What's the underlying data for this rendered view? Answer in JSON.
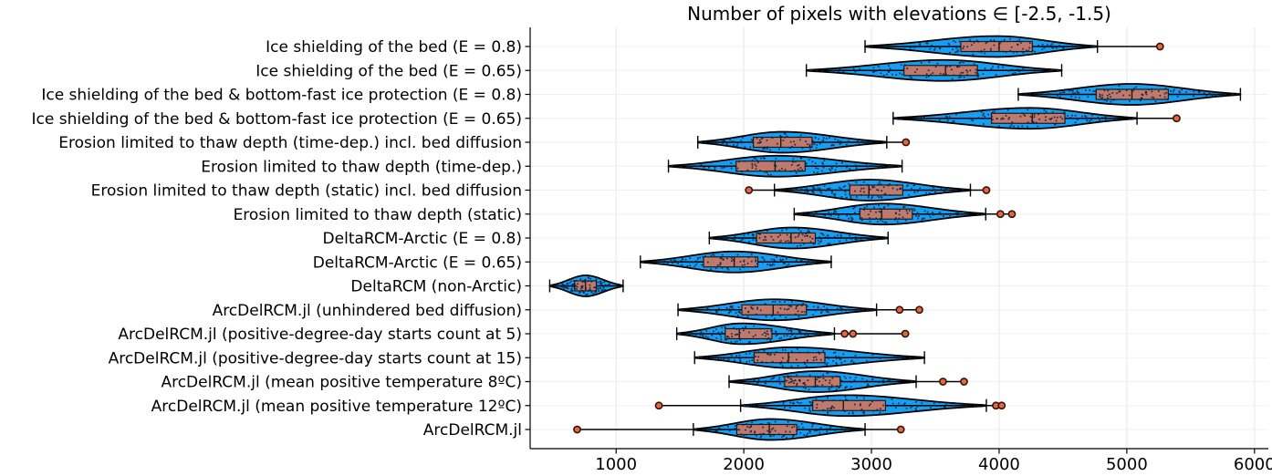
{
  "chart_data": {
    "type": "violin",
    "orientation": "horizontal",
    "title": "Number of pixels with elevations ∈ [-2.5, -1.5)",
    "xlabel": "",
    "ylabel": "",
    "x_ticks": [
      1000,
      2000,
      3000,
      4000,
      5000,
      6000
    ],
    "xlim": [
      310,
      6100
    ],
    "grid": true,
    "legend": "none",
    "colors": {
      "violin_fill": "#169ff2",
      "violin_stroke": "#000000",
      "box_fill": "#c0796a",
      "box_stroke": "#1a1a1a",
      "median_stroke": "#1a1a1a",
      "whisker_stroke": "#000000",
      "outlier_fill": "#e2683f",
      "outlier_stroke": "#331409",
      "scatter_dot": "#0d2240",
      "gridline": "#e7e7e7",
      "axis": "#000000",
      "text": "#000000"
    },
    "series": [
      {
        "label": "Ice shielding of the bed (E = 0.8)",
        "whisker_lo": 2950,
        "q1": 3700,
        "median": 4000,
        "q3": 4260,
        "whisker_hi": 4770,
        "outliers": [
          5260
        ]
      },
      {
        "label": "Ice shielding of the bed (E = 0.65)",
        "whisker_lo": 2490,
        "q1": 3255,
        "median": 3580,
        "q3": 3830,
        "whisker_hi": 4490,
        "outliers": []
      },
      {
        "label": "Ice shielding of the bed & bottom-fast ice protection (E = 0.8)",
        "whisker_lo": 4150,
        "q1": 4760,
        "median": 5040,
        "q3": 5325,
        "whisker_hi": 5890,
        "outliers": []
      },
      {
        "label": "Ice shielding of the bed & bottom-fast ice protection (E = 0.65)",
        "whisker_lo": 3170,
        "q1": 3940,
        "median": 4260,
        "q3": 4515,
        "whisker_hi": 5080,
        "outliers": [
          5390
        ]
      },
      {
        "label": "Erosion limited to thaw depth (time-dep.) incl. bed diffusion",
        "whisker_lo": 1640,
        "q1": 2075,
        "median": 2290,
        "q3": 2535,
        "whisker_hi": 3120,
        "outliers": [
          3270
        ]
      },
      {
        "label": "Erosion limited to thaw depth (time-dep.)",
        "whisker_lo": 1410,
        "q1": 1940,
        "median": 2245,
        "q3": 2480,
        "whisker_hi": 3240,
        "outliers": []
      },
      {
        "label": "Erosion limited to thaw depth (static) incl. bed diffusion",
        "whisker_lo": 2240,
        "q1": 2830,
        "median": 2980,
        "q3": 3245,
        "whisker_hi": 3775,
        "outliers": [
          2040,
          3900
        ]
      },
      {
        "label": "Erosion limited to thaw depth (static)",
        "whisker_lo": 2395,
        "q1": 2910,
        "median": 3080,
        "q3": 3320,
        "whisker_hi": 3895,
        "outliers": [
          4010,
          4100
        ]
      },
      {
        "label": "DeltaRCM-Arctic (E = 0.8)",
        "whisker_lo": 1730,
        "q1": 2100,
        "median": 2370,
        "q3": 2560,
        "whisker_hi": 3130,
        "outliers": []
      },
      {
        "label": "DeltaRCM-Arctic (E = 0.65)",
        "whisker_lo": 1190,
        "q1": 1685,
        "median": 1925,
        "q3": 2110,
        "whisker_hi": 2685,
        "outliers": []
      },
      {
        "label": "DeltaRCM (non-Arctic)",
        "whisker_lo": 480,
        "q1": 675,
        "median": 760,
        "q3": 845,
        "whisker_hi": 1055,
        "outliers": []
      },
      {
        "label": "ArcDelRCM.jl (unhindered bed diffusion)",
        "whisker_lo": 1485,
        "q1": 1985,
        "median": 2230,
        "q3": 2490,
        "whisker_hi": 3040,
        "outliers": [
          3220,
          3375
        ]
      },
      {
        "label": "ArcDelRCM.jl (positive-degree-day starts count at 5)",
        "whisker_lo": 1475,
        "q1": 1855,
        "median": 1965,
        "q3": 2220,
        "whisker_hi": 2710,
        "outliers": [
          2790,
          2855,
          3265
        ]
      },
      {
        "label": "ArcDelRCM.jl (positive-degree-day starts count at 15)",
        "whisker_lo": 1615,
        "q1": 2080,
        "median": 2350,
        "q3": 2635,
        "whisker_hi": 3415,
        "outliers": []
      },
      {
        "label": "ArcDelRCM.jl (mean positive temperature 8ºC)",
        "whisker_lo": 1885,
        "q1": 2320,
        "median": 2560,
        "q3": 2755,
        "whisker_hi": 3350,
        "outliers": [
          3560,
          3725
        ]
      },
      {
        "label": "ArcDelRCM.jl (mean positive temperature 12ºC)",
        "whisker_lo": 1975,
        "q1": 2540,
        "median": 2780,
        "q3": 3110,
        "whisker_hi": 3900,
        "outliers": [
          1335,
          3975,
          4020
        ]
      },
      {
        "label": "ArcDelRCM.jl",
        "whisker_lo": 1605,
        "q1": 1945,
        "median": 2200,
        "q3": 2415,
        "whisker_hi": 2950,
        "outliers": [
          695,
          3230
        ]
      }
    ]
  }
}
